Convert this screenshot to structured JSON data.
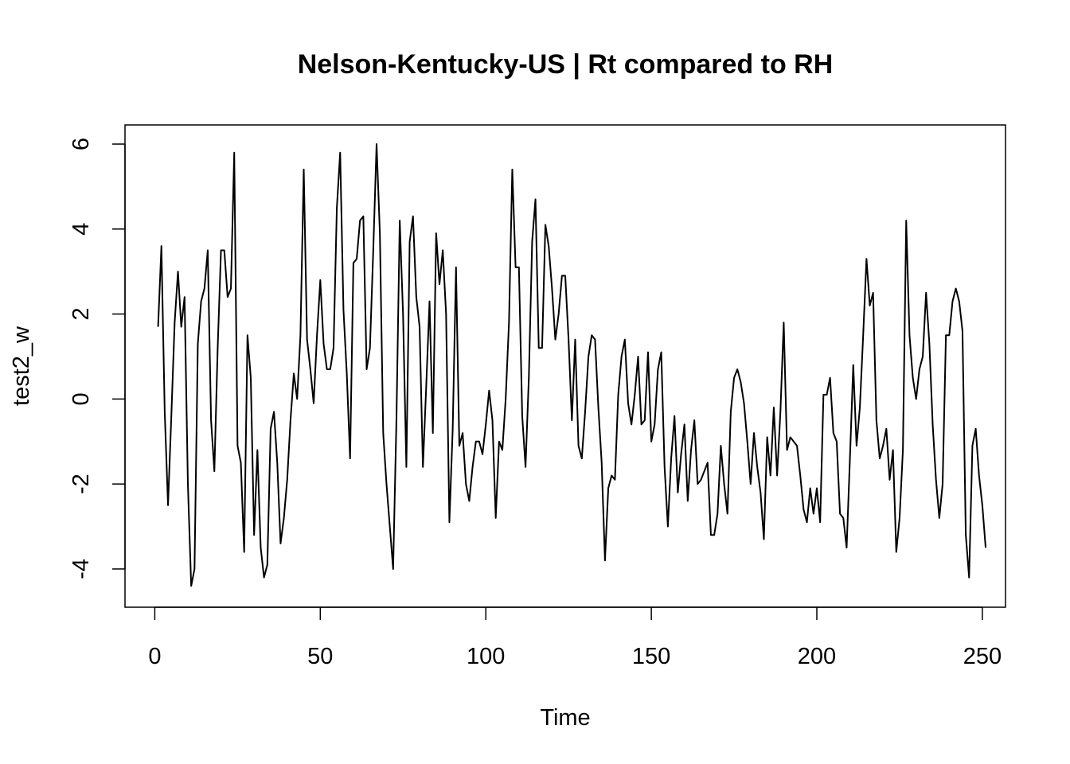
{
  "chart_data": {
    "type": "line",
    "title": "Nelson-Kentucky-US | Rt compared to RH",
    "xlabel": "Time",
    "ylabel": "test2_w",
    "xlim": [
      -9,
      257
    ],
    "ylim": [
      -4.9,
      6.45
    ],
    "x_ticks": [
      0,
      50,
      100,
      150,
      200,
      250
    ],
    "y_ticks": [
      -4,
      -2,
      0,
      2,
      4,
      6
    ],
    "grid": false,
    "legend": "none",
    "line_color": "#000000",
    "series": [
      {
        "values": [
          1.7,
          3.6,
          -0.3,
          -2.5,
          -0.4,
          1.8,
          3.0,
          1.7,
          2.4,
          -2.0,
          -4.4,
          -4.0,
          1.3,
          2.3,
          2.6,
          3.5,
          -0.5,
          -1.7,
          1.2,
          3.5,
          3.5,
          2.4,
          2.6,
          5.8,
          -1.1,
          -1.5,
          -3.6,
          1.5,
          0.5,
          -3.2,
          -1.2,
          -3.5,
          -4.2,
          -3.9,
          -0.7,
          -0.3,
          -1.5,
          -3.4,
          -2.8,
          -1.9,
          -0.5,
          0.6,
          0.0,
          1.5,
          5.4,
          1.4,
          0.7,
          -0.1,
          1.5,
          2.8,
          1.3,
          0.7,
          0.7,
          1.2,
          4.5,
          5.8,
          2.1,
          0.6,
          -1.4,
          3.2,
          3.3,
          4.2,
          4.3,
          0.7,
          1.2,
          3.5,
          6.0,
          3.9,
          -0.8,
          -2.0,
          -3.0,
          -4.0,
          -0.5,
          4.2,
          2.0,
          -1.6,
          3.7,
          4.3,
          2.4,
          1.7,
          -1.6,
          0.3,
          2.3,
          -0.8,
          3.9,
          2.7,
          3.5,
          2.0,
          -2.9,
          -0.7,
          3.1,
          -1.1,
          -0.8,
          -2.0,
          -2.4,
          -1.6,
          -1.0,
          -1.0,
          -1.3,
          -0.6,
          0.2,
          -0.5,
          -2.8,
          -1.0,
          -1.2,
          0.0,
          1.8,
          5.4,
          3.1,
          3.1,
          -0.4,
          -1.6,
          0.5,
          3.7,
          4.7,
          1.2,
          1.2,
          4.1,
          3.6,
          2.6,
          1.4,
          2.0,
          2.9,
          2.9,
          1.4,
          -0.5,
          1.4,
          -1.1,
          -1.4,
          -0.3,
          1.0,
          1.5,
          1.4,
          -0.2,
          -1.5,
          -3.8,
          -2.1,
          -1.8,
          -1.9,
          0.1,
          1.0,
          1.4,
          -0.1,
          -0.6,
          0.1,
          1.0,
          -0.6,
          -0.5,
          1.1,
          -1.0,
          -0.6,
          0.7,
          1.1,
          -1.6,
          -3.0,
          -1.4,
          -0.4,
          -2.2,
          -1.3,
          -0.6,
          -2.4,
          -1.2,
          -0.5,
          -2.0,
          -1.9,
          -1.7,
          -1.5,
          -3.2,
          -3.2,
          -2.7,
          -1.1,
          -2.0,
          -2.7,
          -0.3,
          0.5,
          0.7,
          0.4,
          -0.1,
          -1.0,
          -2.0,
          -0.8,
          -1.6,
          -2.2,
          -3.3,
          -0.9,
          -1.8,
          -0.2,
          -1.8,
          -0.3,
          1.8,
          -1.2,
          -0.9,
          -1.0,
          -1.1,
          -1.8,
          -2.6,
          -2.9,
          -2.1,
          -2.7,
          -2.1,
          -2.9,
          0.1,
          0.1,
          0.5,
          -0.8,
          -1.0,
          -2.7,
          -2.8,
          -3.5,
          -1.4,
          0.8,
          -1.1,
          -0.2,
          1.5,
          3.3,
          2.2,
          2.5,
          -0.5,
          -1.4,
          -1.1,
          -0.7,
          -1.9,
          -1.2,
          -3.6,
          -2.8,
          -1.2,
          4.2,
          1.5,
          0.5,
          0.0,
          0.7,
          1.0,
          2.5,
          1.3,
          -0.6,
          -1.9,
          -2.8,
          -2.0,
          1.5,
          1.5,
          2.3,
          2.6,
          2.3,
          1.6,
          -3.2,
          -4.2,
          -1.1,
          -0.7,
          -1.8,
          -2.5,
          -3.5
        ]
      }
    ]
  }
}
